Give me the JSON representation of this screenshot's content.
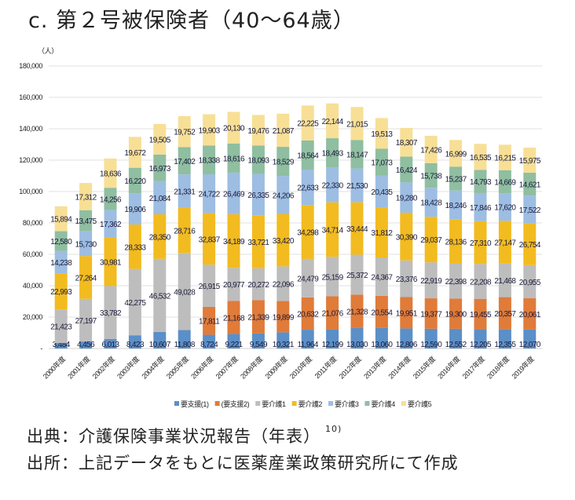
{
  "chart_data": {
    "type": "bar",
    "stacked": true,
    "title": "c. 第２号被保険者（40〜64歳）",
    "ylabel": "（人）",
    "ylim": [
      0,
      180000
    ],
    "yticks": [
      "-",
      "20,000",
      "40,000",
      "60,000",
      "80,000",
      "100,000",
      "120,000",
      "140,000",
      "160,000",
      "180,000"
    ],
    "grid": true,
    "legend_position": "bottom",
    "categories": [
      "2000年度",
      "2001年度",
      "2002年度",
      "2003年度",
      "2004年度",
      "2005年度",
      "2006年度",
      "2007年度",
      "2008年度",
      "2009年度",
      "2010年度",
      "2011年度",
      "2012年度",
      "2013年度",
      "2014年度",
      "2015年度",
      "2016年度",
      "2017年度",
      "2018年度",
      "2019年度"
    ],
    "series": [
      {
        "name": "要支援(1)",
        "color": "#5b8fc7",
        "values": [
          3484,
          4456,
          6013,
          8423,
          10607,
          11808,
          8724,
          9221,
          9549,
          10321,
          11964,
          12199,
          13030,
          13060,
          12806,
          12590,
          12552,
          12205,
          12355,
          12070
        ]
      },
      {
        "name": "(要支援2)",
        "color": "#e07b39",
        "values": [
          null,
          null,
          null,
          null,
          null,
          null,
          17811,
          21168,
          21339,
          19899,
          20632,
          21076,
          21328,
          20554,
          19951,
          19377,
          19300,
          19455,
          20357,
          20061
        ]
      },
      {
        "name": "要介護1",
        "color": "#bdbdbd",
        "values": [
          21423,
          27197,
          33782,
          42275,
          46532,
          49028,
          26915,
          20977,
          20272,
          22096,
          24479,
          25159,
          25372,
          24367,
          23376,
          22919,
          22398,
          22208,
          21468,
          20955
        ]
      },
      {
        "name": "要介護2",
        "color": "#f2bb1f",
        "values": [
          22993,
          27264,
          30981,
          28333,
          28350,
          28716,
          32837,
          34189,
          33721,
          33420,
          34298,
          34714,
          33444,
          31812,
          30390,
          29037,
          28136,
          27310,
          27147,
          26754
        ]
      },
      {
        "name": "要介護3",
        "color": "#9dbde2",
        "values": [
          14238,
          15730,
          17362,
          19906,
          21084,
          21331,
          24722,
          26469,
          26335,
          24206,
          22633,
          22330,
          21530,
          20435,
          19280,
          18428,
          18246,
          17846,
          17620,
          17522
        ]
      },
      {
        "name": "要介護4",
        "color": "#8fbea0",
        "values": [
          12580,
          13475,
          14256,
          16220,
          16973,
          17402,
          18338,
          18616,
          18093,
          18529,
          18564,
          18493,
          18147,
          17073,
          16424,
          15738,
          15237,
          14793,
          14669,
          14621
        ]
      },
      {
        "name": "要介護5",
        "color": "#f7df96",
        "values": [
          15894,
          17312,
          18636,
          19672,
          19505,
          19752,
          19903,
          20130,
          19476,
          21087,
          22225,
          22144,
          21015,
          19513,
          18307,
          17426,
          16999,
          16535,
          16215,
          15975
        ]
      }
    ]
  },
  "footer": {
    "source": "出典：介護保険事業状況報告（年表）",
    "source_ref": "10)",
    "credit": "出所：上記データをもとに医薬産業政策研究所にて作成"
  }
}
